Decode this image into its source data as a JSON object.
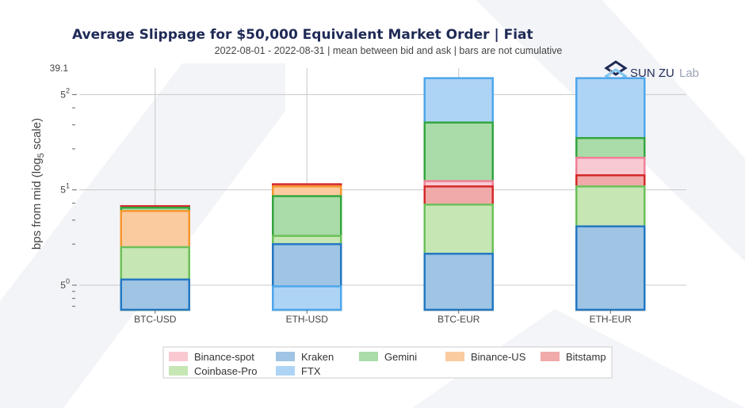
{
  "chart_data": {
    "type": "bar",
    "title": "Average Slippage for $50,000 Equivalent Market Order | Fiat",
    "subtitle": "2022-08-01 - 2022-08-31 | mean between bid and ask | bars are not cumulative",
    "ylabel": "bps from mid (log",
    "ylabel_sub": "5",
    "ylabel_suffix": " scale)",
    "y_scale": "log5",
    "ylim": [
      0.66,
      39.1
    ],
    "ytick_top_label": "39.1",
    "yticks": [
      {
        "value": 1,
        "base": "5",
        "exp": "0"
      },
      {
        "value": 5,
        "base": "5",
        "exp": "1"
      },
      {
        "value": 25,
        "base": "5",
        "exp": "2"
      }
    ],
    "minor_ticks": [
      0.7,
      0.8,
      0.9,
      2,
      3,
      4,
      10,
      15,
      20
    ],
    "grid": true,
    "categories": [
      "BTC-USD",
      "ETH-USD",
      "BTC-EUR",
      "ETH-EUR"
    ],
    "series": [
      {
        "name": "FTX",
        "fill": "#aed4f5",
        "stroke": "#4ea6ec",
        "values": [
          null,
          0.98,
          33.0,
          33.0
        ]
      },
      {
        "name": "Binance-spot",
        "fill": "#f9c9d2",
        "stroke": "#ee7f97",
        "values": [
          null,
          null,
          5.8,
          8.6
        ]
      },
      {
        "name": "Gemini",
        "fill": "#a9dca8",
        "stroke": "#34a540",
        "values": [
          3.7,
          4.5,
          15.6,
          12.0
        ]
      },
      {
        "name": "Coinbase-Pro",
        "fill": "#c6e6b4",
        "stroke": "#6cc05a",
        "values": [
          1.9,
          2.3,
          3.9,
          5.3
        ]
      },
      {
        "name": "Binance-US",
        "fill": "#fbcba0",
        "stroke": "#f5962c",
        "values": [
          3.5,
          5.3,
          null,
          null
        ]
      },
      {
        "name": "Bitstamp",
        "fill": "#f0aaaa",
        "stroke": "#d42a2a",
        "values": [
          3.8,
          5.5,
          5.3,
          6.4
        ]
      },
      {
        "name": "Kraken",
        "fill": "#9fc4e4",
        "stroke": "#2378c2",
        "values": [
          1.1,
          2.0,
          1.7,
          2.7
        ]
      }
    ],
    "legend_order": [
      "Binance-spot",
      "Kraken",
      "Gemini",
      "Binance-US",
      "Bitstamp",
      "Coinbase-Pro",
      "FTX"
    ],
    "legend_position": "bottom"
  },
  "logo": {
    "text": "SUN ZU",
    "suffix": "Lab",
    "colors": {
      "dark": "#1f2a56",
      "light": "#9aa3b5",
      "accent": "#7dc4f0"
    }
  },
  "colors": {
    "grid": "#c8c8c8",
    "axis": "#999999",
    "watermark": "#f3f4f7"
  }
}
